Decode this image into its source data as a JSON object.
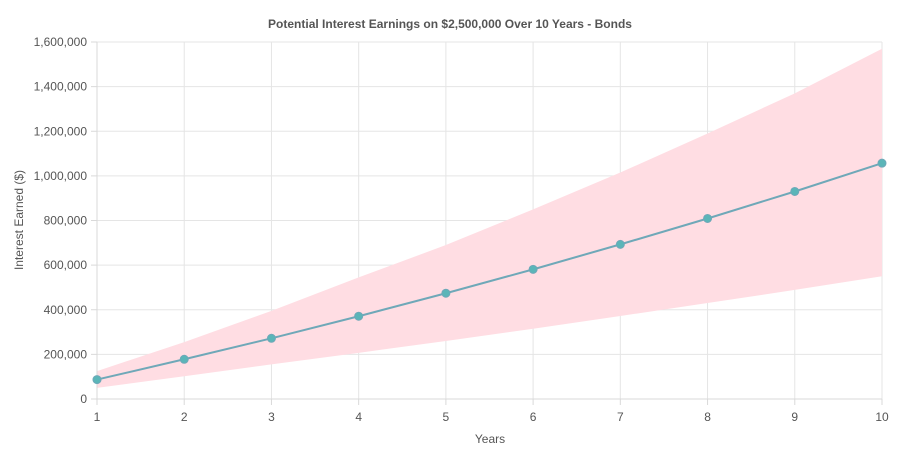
{
  "chart_data": {
    "type": "line",
    "title": "Potential Interest Earnings on $2,500,000 Over 10 Years - Bonds",
    "xlabel": "Years",
    "ylabel": "Interest Earned ($)",
    "x": [
      1,
      2,
      3,
      4,
      5,
      6,
      7,
      8,
      9,
      10
    ],
    "x_tick_labels": [
      "1",
      "2",
      "3",
      "4",
      "5",
      "6",
      "7",
      "8",
      "9",
      "10"
    ],
    "ylim": [
      0,
      1600000
    ],
    "y_ticks": [
      0,
      200000,
      400000,
      600000,
      800000,
      1000000,
      1200000,
      1400000,
      1600000
    ],
    "y_tick_labels": [
      "0",
      "200,000",
      "400,000",
      "600,000",
      "800,000",
      "1,000,000",
      "1,200,000",
      "1,400,000",
      "1,600,000"
    ],
    "grid": true,
    "series": [
      {
        "values": [
          87000,
          178000,
          272000,
          371000,
          474000,
          581000,
          693000,
          809000,
          930000,
          1057000
        ],
        "color": "#6fa8b8",
        "marker_color": "#5bb5b8"
      }
    ],
    "band": {
      "lower": [
        50000,
        102000,
        155000,
        207000,
        260000,
        315000,
        372000,
        430000,
        489000,
        550000
      ],
      "upper": [
        125000,
        255000,
        395000,
        545000,
        690000,
        850000,
        1015000,
        1190000,
        1370000,
        1570000
      ],
      "color": "#ffdde3"
    }
  }
}
